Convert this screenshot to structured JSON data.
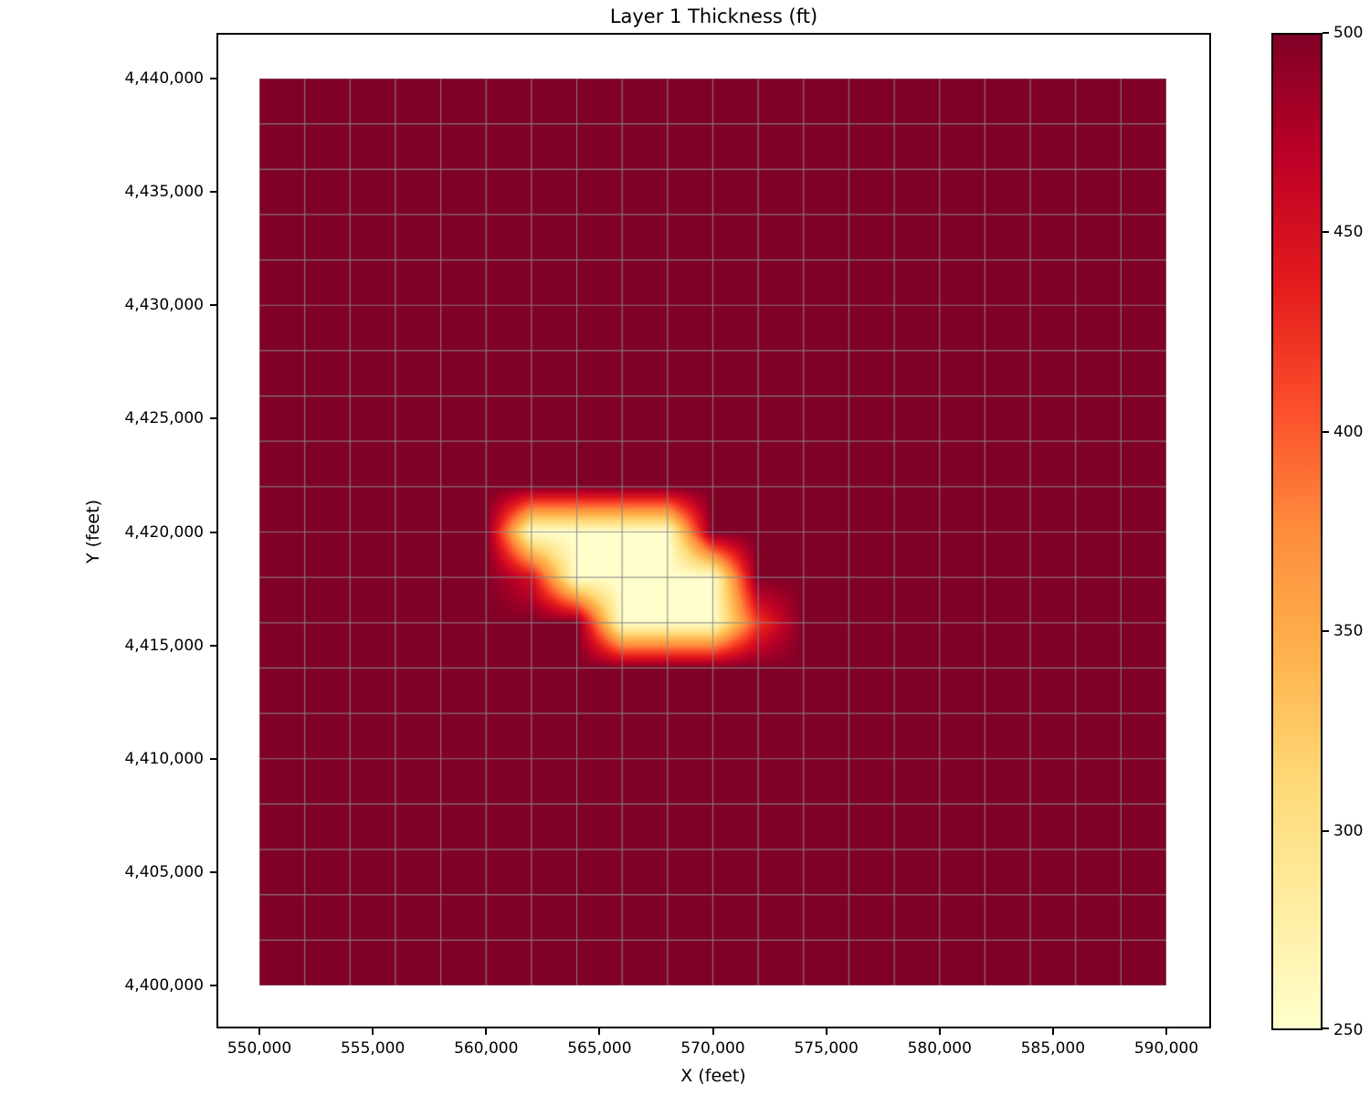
{
  "title": "Layer 1 Thickness (ft)",
  "x_axis": {
    "label": "X (feet)",
    "tick_labels": [
      "550,000",
      "555,000",
      "560,000",
      "565,000",
      "570,000",
      "575,000",
      "580,000",
      "585,000",
      "590,000"
    ],
    "tick_values": [
      550000,
      555000,
      560000,
      565000,
      570000,
      575000,
      580000,
      585000,
      590000
    ]
  },
  "y_axis": {
    "label": "Y (feet)",
    "tick_labels": [
      "4,400,000",
      "4,405,000",
      "4,410,000",
      "4,415,000",
      "4,420,000",
      "4,425,000",
      "4,430,000",
      "4,435,000",
      "4,440,000"
    ],
    "tick_values": [
      4400000,
      4405000,
      4410000,
      4415000,
      4420000,
      4425000,
      4430000,
      4435000,
      4440000
    ]
  },
  "colorbar": {
    "tick_labels": [
      "500",
      "450",
      "400",
      "350",
      "300",
      "250"
    ],
    "tick_values": [
      500,
      450,
      400,
      350,
      300,
      250
    ],
    "vmin": 250,
    "vmax": 500,
    "colormap": "YlOrRd"
  },
  "chart_data": {
    "type": "heatmap",
    "title": "Layer 1 Thickness (ft)",
    "xlabel": "X (feet)",
    "ylabel": "Y (feet)",
    "x_range_ft": [
      550000,
      590000
    ],
    "y_range_ft": [
      4400000,
      4440000
    ],
    "xlim": [
      548000,
      592000
    ],
    "ylim": [
      4398000,
      4442000
    ],
    "node_spacing_ft": 2000,
    "nodes_x": 21,
    "nodes_y": 21,
    "shading": "gouraud",
    "vmin": 250,
    "vmax": 500,
    "background_value_ft": 500,
    "low_value_ft": 250,
    "low_nodes": [
      {
        "y": 4420000,
        "x": [
          562000,
          564000,
          566000,
          568000
        ],
        "value": 250
      },
      {
        "y": 4418000,
        "x": [
          564000,
          566000,
          568000,
          570000
        ],
        "value": 250
      },
      {
        "y": 4416000,
        "x": [
          566000,
          568000,
          570000
        ],
        "value": 250
      },
      {
        "y": 4418000,
        "x": [
          562000
        ],
        "value": 450
      },
      {
        "y": 4416000,
        "x": [
          572000
        ],
        "value": 420
      }
    ],
    "grid_on": true,
    "grid_color": "#8c8c8c",
    "background_color": "#800026",
    "colormap_stops": [
      [
        0.0,
        "#ffffcc"
      ],
      [
        0.125,
        "#ffeda0"
      ],
      [
        0.25,
        "#fed976"
      ],
      [
        0.375,
        "#feb24c"
      ],
      [
        0.5,
        "#fd8d3c"
      ],
      [
        0.625,
        "#fc4e2a"
      ],
      [
        0.75,
        "#e31a1c"
      ],
      [
        0.875,
        "#bd0026"
      ],
      [
        1.0,
        "#800026"
      ]
    ]
  }
}
